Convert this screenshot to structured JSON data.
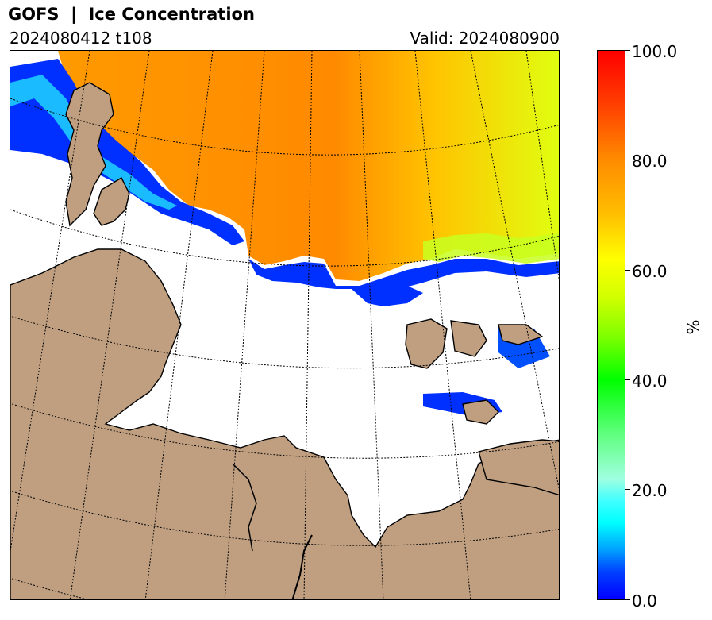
{
  "header": {
    "title": "GOFS  |  Ice Concentration",
    "run": "2024080412 t108",
    "valid": "Valid: 2024080900"
  },
  "colorbar": {
    "unit": "%",
    "ticks": [
      "100.0",
      "80.0",
      "60.0",
      "40.0",
      "20.0",
      "0.0"
    ],
    "range": [
      0,
      100
    ]
  },
  "map": {
    "land_color": "#bf9f80",
    "ocean_color": "#ffffff",
    "coastline_color": "#000000",
    "gridline_style": "dotted"
  }
}
